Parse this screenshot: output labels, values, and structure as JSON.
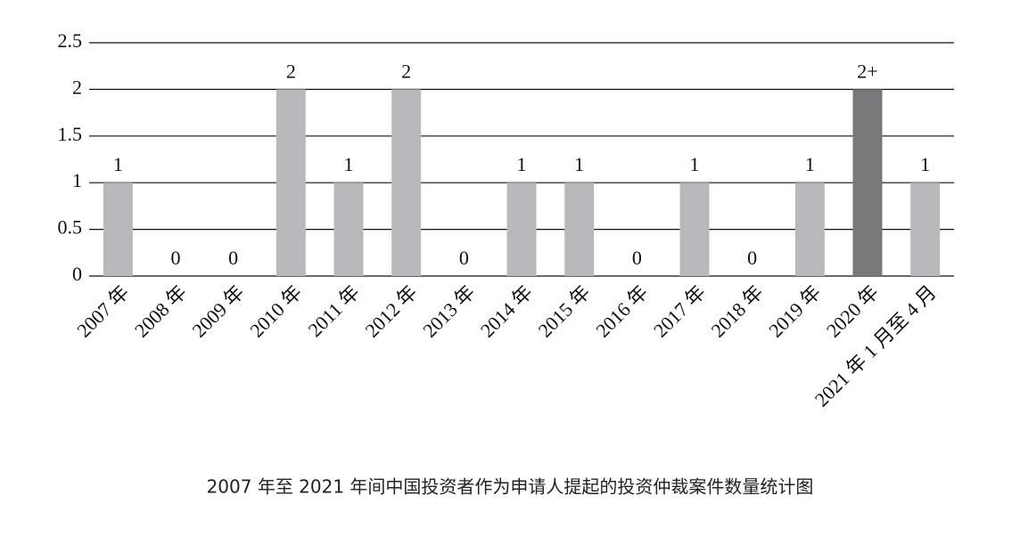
{
  "chart_data": {
    "type": "bar",
    "title": "2007 年至 2021 年间中国投资者作为申请人提起的投资仲裁案件数量统计图",
    "categories": [
      "2007 年",
      "2008 年",
      "2009 年",
      "2010 年",
      "2011 年",
      "2012 年",
      "2013 年",
      "2014 年",
      "2015 年",
      "2016 年",
      "2017 年",
      "2018 年",
      "2019 年",
      "2020 年",
      "2021 年 1 月至 4 月"
    ],
    "values": [
      1,
      0,
      0,
      2,
      1,
      2,
      0,
      1,
      1,
      0,
      1,
      0,
      1,
      2,
      1
    ],
    "value_labels": [
      "1",
      "0",
      "0",
      "2",
      "1",
      "2",
      "0",
      "1",
      "1",
      "0",
      "1",
      "0",
      "1",
      "2+",
      "1"
    ],
    "colors": [
      "#b8b9bb",
      "#b8b9bb",
      "#b8b9bb",
      "#b8b9bb",
      "#b8b9bb",
      "#b8b9bb",
      "#b8b9bb",
      "#b8b9bb",
      "#b8b9bb",
      "#b8b9bb",
      "#b8b9bb",
      "#b8b9bb",
      "#b8b9bb",
      "#77787a",
      "#b8b9bb"
    ],
    "ylim": [
      0,
      2.5
    ],
    "yticks": [
      0,
      0.5,
      1,
      1.5,
      2,
      2.5
    ],
    "grid": true
  }
}
